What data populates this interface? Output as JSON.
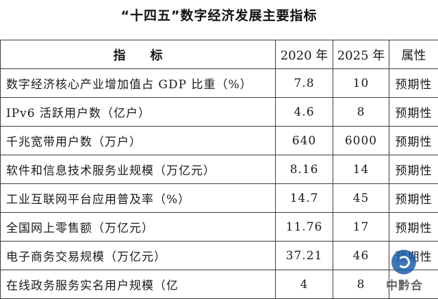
{
  "title": "“十四五”数字经济发展主要指标",
  "table": {
    "headers": [
      "指　　标",
      "2020 年",
      "2025 年",
      "属性"
    ],
    "rows": [
      {
        "name": "数字经济核心产业增加值占 GDP 比重（%）",
        "y2020": "7.8",
        "y2025": "10",
        "attr": "预期性"
      },
      {
        "name": "IPv6 活跃用户数（亿户）",
        "y2020": "4.6",
        "y2025": "8",
        "attr": "预期性"
      },
      {
        "name": "千兆宽带用户数（万户）",
        "y2020": "640",
        "y2025": "6000",
        "attr": "预期性"
      },
      {
        "name": "软件和信息技术服务业规模（万亿元）",
        "y2020": "8.16",
        "y2025": "14",
        "attr": "预期性"
      },
      {
        "name": "工业互联网平台应用普及率（%）",
        "y2020": "14.7",
        "y2025": "45",
        "attr": "预期性"
      },
      {
        "name": "全国网上零售额（万亿元）",
        "y2020": "11.76",
        "y2025": "17",
        "attr": "预期性"
      },
      {
        "name": "电子商务交易规模（万亿元）",
        "y2020": "37.21",
        "y2025": "46",
        "attr": "预期性"
      },
      {
        "name": "在线政务服务实名用户规模（亿",
        "y2020": "4",
        "y2025": "8",
        "attr": ""
      }
    ]
  },
  "watermark": {
    "text": "中黔合",
    "icon": "brand-logo-icon",
    "color": "#1d5fae"
  }
}
